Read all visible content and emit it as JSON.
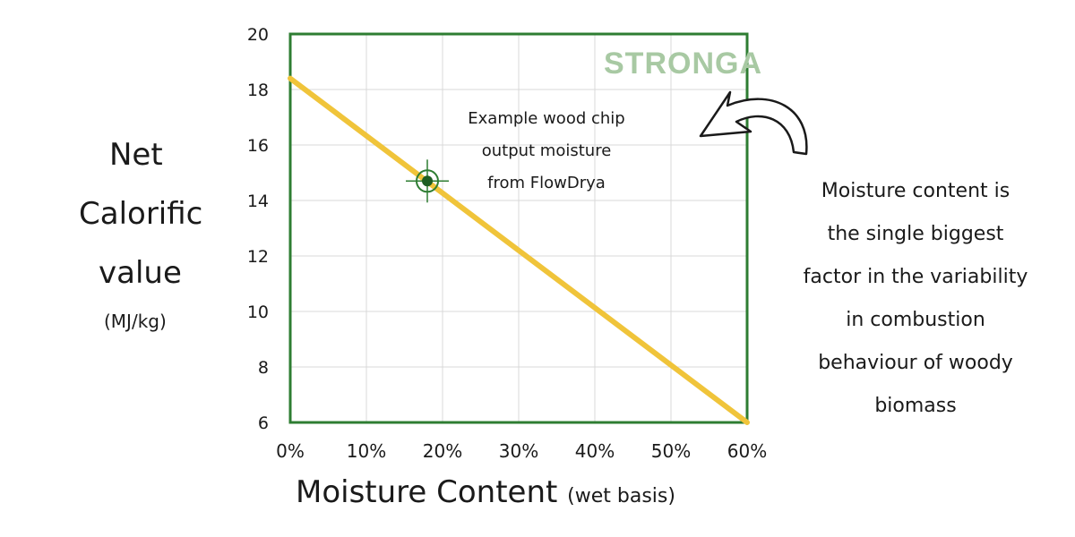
{
  "brand": {
    "watermark": "STRONGA"
  },
  "y_label_lines": [
    "Net",
    "Calorific",
    "value",
    "(MJ/kg)"
  ],
  "x_label": {
    "main": "Moisture Content",
    "sub": "(wet basis)"
  },
  "annotation_lines": [
    "Example wood chip",
    "output moisture",
    "from FlowDrya"
  ],
  "note_lines": [
    "Moisture content is",
    "the single biggest",
    "factor in the variability",
    "in combustion",
    "behaviour of woody",
    "biomass"
  ],
  "colors": {
    "frame": "#2e7d32",
    "line": "#f0c43a",
    "marker_outer": "#2e7d32",
    "marker_inner": "#1e5e23",
    "grid": "#d8d8d8"
  },
  "chart_data": {
    "type": "line",
    "title": "",
    "xlabel": "Moisture Content (wet basis)",
    "ylabel": "Net Calorific value (MJ/kg)",
    "x_tick_labels": [
      "0%",
      "10%",
      "20%",
      "30%",
      "40%",
      "50%",
      "60%"
    ],
    "y_tick_labels": [
      "6",
      "8",
      "10",
      "12",
      "14",
      "16",
      "18",
      "20"
    ],
    "xlim": [
      0,
      60
    ],
    "ylim": [
      6,
      20
    ],
    "grid": true,
    "series": [
      {
        "x": [
          0,
          60
        ],
        "y": [
          18.4,
          6.0
        ]
      }
    ],
    "highlight_point": {
      "x": 18,
      "y": 14.7
    }
  }
}
